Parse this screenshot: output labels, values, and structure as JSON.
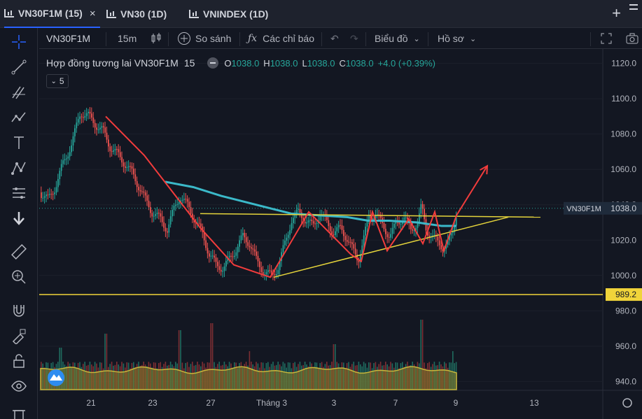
{
  "tabs": [
    {
      "label": "VN30F1M (15)",
      "close": "×"
    },
    {
      "label": "VN30 (1D)"
    },
    {
      "label": "VNINDEX (1D)"
    }
  ],
  "tab_add": "+",
  "toolbar": {
    "symbol": "VN30F1M",
    "interval": "15m",
    "compare": "So sánh",
    "indicators": "Các chỉ báo",
    "chart_type": "Biểu đồ",
    "profile": "Hồ sơ"
  },
  "legend": {
    "title": "Hợp đồng tương lai VN30F1M",
    "timeframe": "15",
    "o_key": "O",
    "o_val": "1038.0",
    "h_key": "H",
    "h_val": "1038.0",
    "l_key": "L",
    "l_val": "1038.0",
    "c_key": "C",
    "c_val": "1038.0",
    "change": "+4.0 (+0.39%)",
    "collapse_count": "5"
  },
  "colors": {
    "up": "#26a69a",
    "down": "#ef5350",
    "ma": "#3bb9c9",
    "trend": "#f23c3c",
    "triangle": "#e5d43b",
    "support": "#f0d43a",
    "label_bg": "#1f2b3b"
  },
  "chart_data": {
    "type": "candlestick",
    "symbol": "VN30F1M",
    "ylim": [
      935,
      1125
    ],
    "y_ticks": [
      "940.0",
      "960.0",
      "980.0",
      "1000.0",
      "1020.0",
      "1040.0",
      "1060.0",
      "1080.0",
      "1100.0",
      "1120.0"
    ],
    "x_ticks": [
      "21",
      "23",
      "27",
      "Tháng 3",
      "3",
      "7",
      "9",
      "13"
    ],
    "last_price": 1038.0,
    "last_price_label": "1038.0",
    "symbol_label": "VN30F1M",
    "support_level": 989.2,
    "support_label": "989.2",
    "price_path": [
      [
        0,
        1047
      ],
      [
        12,
        1043
      ],
      [
        22,
        1050
      ],
      [
        32,
        1062
      ],
      [
        45,
        1074
      ],
      [
        58,
        1092
      ],
      [
        68,
        1091
      ],
      [
        78,
        1086
      ],
      [
        90,
        1082
      ],
      [
        100,
        1073
      ],
      [
        110,
        1069
      ],
      [
        120,
        1064
      ],
      [
        132,
        1058
      ],
      [
        148,
        1045
      ],
      [
        160,
        1036
      ],
      [
        172,
        1032
      ],
      [
        182,
        1026
      ],
      [
        192,
        1038
      ],
      [
        200,
        1045
      ],
      [
        212,
        1039
      ],
      [
        222,
        1031
      ],
      [
        232,
        1024
      ],
      [
        242,
        1012
      ],
      [
        252,
        1006
      ],
      [
        262,
        1004
      ],
      [
        272,
        1010
      ],
      [
        282,
        1016
      ],
      [
        290,
        1022
      ],
      [
        300,
        1018
      ],
      [
        310,
        1008
      ],
      [
        320,
        1002
      ],
      [
        330,
        1000
      ],
      [
        340,
        1004
      ],
      [
        350,
        1018
      ],
      [
        360,
        1032
      ],
      [
        370,
        1036
      ],
      [
        380,
        1031
      ],
      [
        390,
        1028
      ],
      [
        400,
        1035
      ],
      [
        410,
        1030
      ],
      [
        420,
        1024
      ],
      [
        430,
        1027
      ],
      [
        440,
        1020
      ],
      [
        450,
        1012
      ],
      [
        455,
        1009
      ],
      [
        462,
        1020
      ],
      [
        470,
        1033
      ],
      [
        480,
        1035
      ],
      [
        490,
        1028
      ],
      [
        500,
        1022
      ],
      [
        510,
        1030
      ],
      [
        520,
        1033
      ],
      [
        530,
        1026
      ],
      [
        540,
        1030
      ],
      [
        545,
        1039
      ],
      [
        552,
        1026
      ],
      [
        560,
        1022
      ],
      [
        568,
        1019
      ],
      [
        576,
        1016
      ],
      [
        582,
        1017
      ],
      [
        590,
        1025
      ],
      [
        596,
        1038
      ]
    ],
    "ma_path": [
      [
        180,
        1053
      ],
      [
        220,
        1050
      ],
      [
        260,
        1045
      ],
      [
        300,
        1041
      ],
      [
        340,
        1037
      ],
      [
        360,
        1035
      ],
      [
        400,
        1034
      ],
      [
        440,
        1033
      ],
      [
        470,
        1031
      ],
      [
        500,
        1031
      ],
      [
        540,
        1030
      ],
      [
        575,
        1028
      ],
      [
        596,
        1028
      ]
    ],
    "trend_zigzag": [
      [
        95,
        1090
      ],
      [
        150,
        1068
      ],
      [
        230,
        1027
      ],
      [
        278,
        1006
      ],
      [
        330,
        999
      ],
      [
        385,
        1036
      ],
      [
        445,
        1012
      ],
      [
        460,
        1008
      ],
      [
        476,
        1036
      ],
      [
        497,
        1014
      ],
      [
        528,
        1032
      ],
      [
        548,
        1018
      ],
      [
        565,
        1036
      ],
      [
        578,
        1014
      ],
      [
        596,
        1034
      ],
      [
        640,
        1062
      ]
    ],
    "triangle_upper": [
      [
        230,
        1035
      ],
      [
        716,
        1033
      ]
    ],
    "triangle_lower": [
      [
        335,
        999
      ],
      [
        670,
        1033
      ]
    ],
    "volume": {
      "base": 30,
      "peaks": [
        [
          30,
          60
        ],
        [
          95,
          80
        ],
        [
          200,
          85
        ],
        [
          245,
          95
        ],
        [
          300,
          55
        ],
        [
          420,
          65
        ],
        [
          545,
          100
        ],
        [
          590,
          55
        ]
      ]
    }
  }
}
